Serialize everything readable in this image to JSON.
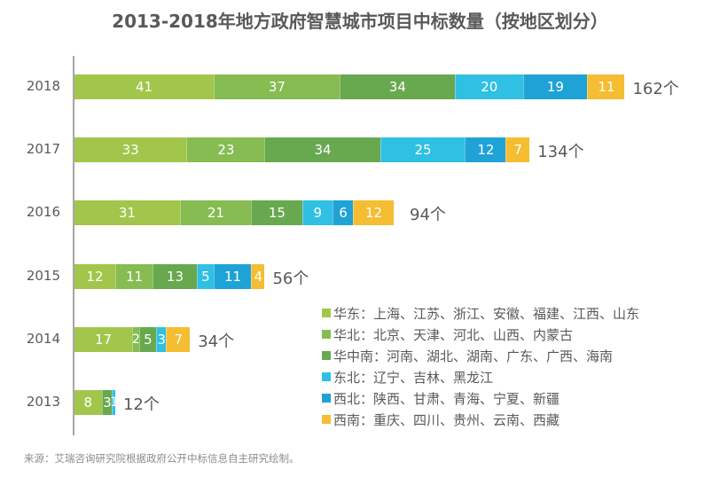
{
  "chart_data": {
    "type": "bar",
    "orientation": "horizontal",
    "stacked": true,
    "title": "2013-2018年地方政府智慧城市项目中标数量（按地区划分）",
    "categories": [
      "2018",
      "2017",
      "2016",
      "2015",
      "2014",
      "2013"
    ],
    "series": [
      {
        "name": "华东：上海、江苏、浙江、安徽、福建、江西、山东",
        "color": "#a2c64b",
        "values": [
          41,
          33,
          31,
          12,
          17,
          8
        ]
      },
      {
        "name": "华北：北京、天津、河北、山西、内蒙古",
        "color": "#86bc51",
        "values": [
          37,
          23,
          21,
          11,
          2,
          0
        ]
      },
      {
        "name": "华中南：河南、湖北、湖南、广东、广西、海南",
        "color": "#68a84f",
        "values": [
          34,
          34,
          15,
          13,
          5,
          3
        ]
      },
      {
        "name": "东北：辽宁、吉林、黑龙江",
        "color": "#2fc0e3",
        "values": [
          20,
          25,
          9,
          5,
          3,
          1
        ]
      },
      {
        "name": "西北：陕西、甘肃、青海、宁夏、新疆",
        "color": "#1fa3d6",
        "values": [
          19,
          12,
          6,
          11,
          0,
          0
        ]
      },
      {
        "name": "西南：重庆、四川、贵州、云南、西藏",
        "color": "#f4bd32",
        "values": [
          11,
          7,
          12,
          4,
          7,
          0
        ]
      }
    ],
    "totals": [
      "162个",
      "134个",
      "94个",
      "56个",
      "34个",
      "12个"
    ],
    "total_values": [
      162,
      134,
      94,
      56,
      34,
      12
    ],
    "xlabel": "",
    "ylabel": "",
    "grid": false,
    "legend_position": "bottom-right"
  },
  "source": "来源：艾瑞咨询研究院根据政府公开中标信息自主研究绘制。"
}
